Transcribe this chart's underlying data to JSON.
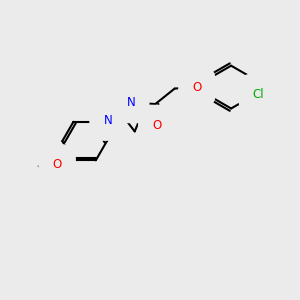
{
  "bg_color": "#ebebeb",
  "bond_color": "#000000",
  "bond_width": 1.5,
  "atom_colors": {
    "N": "#0000ff",
    "O": "#ff0000",
    "Cl": "#00aa00",
    "C": "#000000",
    "H": "#5a9090"
  },
  "font_size": 8.5,
  "fig_size": [
    3.0,
    3.0
  ],
  "dpi": 100
}
